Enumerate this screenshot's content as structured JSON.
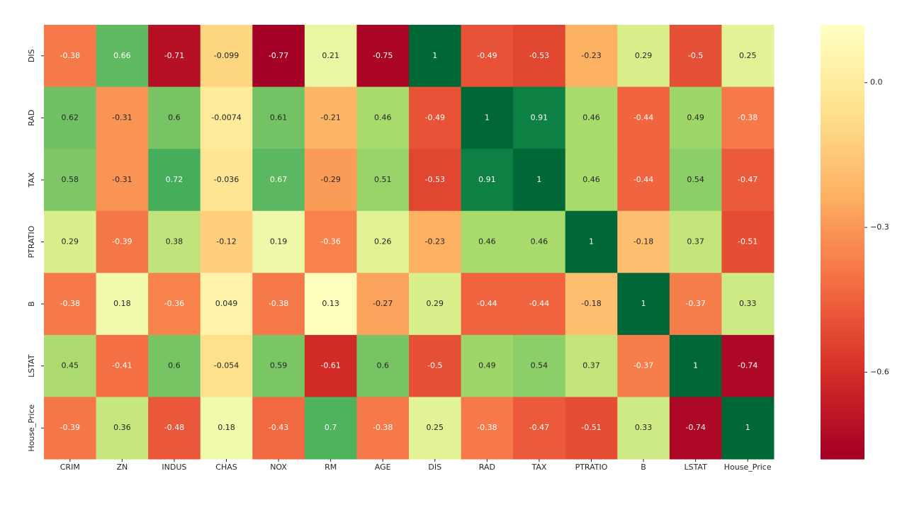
{
  "chart_data": {
    "type": "heatmap",
    "columns": [
      "CRIM",
      "ZN",
      "INDUS",
      "CHAS",
      "NOX",
      "RM",
      "AGE",
      "DIS",
      "RAD",
      "TAX",
      "PTRATIO",
      "B",
      "LSTAT",
      "House_Price"
    ],
    "rows": [
      "DIS",
      "RAD",
      "TAX",
      "PTRATIO",
      "B",
      "LSTAT",
      "House_Price"
    ],
    "values": [
      [
        -0.38,
        0.66,
        -0.71,
        -0.099,
        -0.77,
        0.21,
        -0.75,
        1,
        -0.49,
        -0.53,
        -0.23,
        0.29,
        -0.5,
        0.25
      ],
      [
        0.62,
        -0.31,
        0.6,
        -0.0074,
        0.61,
        -0.21,
        0.46,
        -0.49,
        1,
        0.91,
        0.46,
        -0.44,
        0.49,
        -0.38
      ],
      [
        0.58,
        -0.31,
        0.72,
        -0.036,
        0.67,
        -0.29,
        0.51,
        -0.53,
        0.91,
        1,
        0.46,
        -0.44,
        0.54,
        -0.47
      ],
      [
        0.29,
        -0.39,
        0.38,
        -0.12,
        0.19,
        -0.36,
        0.26,
        -0.23,
        0.46,
        0.46,
        1,
        -0.18,
        0.37,
        -0.51
      ],
      [
        -0.38,
        0.18,
        -0.36,
        0.049,
        -0.38,
        0.13,
        -0.27,
        0.29,
        -0.44,
        -0.44,
        -0.18,
        1,
        -0.37,
        0.33
      ],
      [
        0.45,
        -0.41,
        0.6,
        -0.054,
        0.59,
        -0.61,
        0.6,
        -0.5,
        0.49,
        0.54,
        0.37,
        -0.37,
        1,
        -0.74
      ],
      [
        -0.39,
        0.36,
        -0.48,
        0.18,
        -0.43,
        0.7,
        -0.38,
        0.25,
        -0.38,
        -0.47,
        -0.51,
        0.33,
        -0.74,
        1
      ]
    ],
    "color_range": [
      -0.77,
      1
    ],
    "colormap": [
      "#a50026",
      "#d73027",
      "#f46d43",
      "#fdae61",
      "#fee08b",
      "#ffffbf",
      "#d9ef8b",
      "#a6d96a",
      "#66bd63",
      "#1a9850",
      "#006837"
    ],
    "colorbar_lim": [
      -0.78,
      0.12
    ],
    "colorbar_ticks": [
      {
        "value": 0,
        "label": "0.0"
      },
      {
        "value": -0.3,
        "label": "−0.3"
      },
      {
        "value": -0.6,
        "label": "−0.6"
      }
    ]
  }
}
